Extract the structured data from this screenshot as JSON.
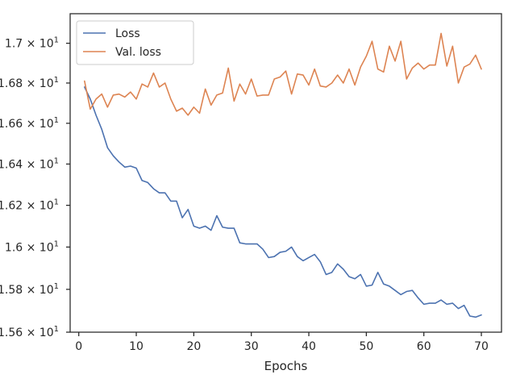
{
  "chart_data": {
    "type": "line",
    "xlabel": "Epochs",
    "ylabel": "",
    "xlim": [
      -1.5,
      73.5
    ],
    "ylim": [
      15.6,
      17.15
    ],
    "y_scale": "log",
    "grid": false,
    "legend_position": "top-left",
    "x_ticks": [
      0,
      10,
      20,
      30,
      40,
      50,
      60,
      70
    ],
    "x_tick_labels": [
      "0",
      "10",
      "20",
      "30",
      "40",
      "50",
      "60",
      "70"
    ],
    "y_ticks": [
      15.6,
      15.8,
      16.0,
      16.2,
      16.4,
      16.6,
      16.8,
      17.0
    ],
    "y_tick_labels": [
      "1.56 × 10",
      "1.58 × 10",
      "1.6 × 10",
      "1.62 × 10",
      "1.64 × 10",
      "1.66 × 10",
      "1.68 × 10",
      "1.7 × 10"
    ],
    "y_tick_exponent": "1",
    "series": [
      {
        "name": "Loss",
        "color": "#4c72b0",
        "x": [
          1,
          2,
          3,
          4,
          5,
          6,
          7,
          8,
          9,
          10,
          11,
          12,
          13,
          14,
          15,
          16,
          17,
          18,
          19,
          20,
          21,
          22,
          23,
          24,
          25,
          26,
          27,
          28,
          29,
          30,
          31,
          32,
          33,
          34,
          35,
          36,
          37,
          38,
          39,
          40,
          41,
          42,
          43,
          44,
          45,
          46,
          47,
          48,
          49,
          50,
          51,
          52,
          53,
          54,
          55,
          56,
          57,
          58,
          59,
          60,
          61,
          62,
          63,
          64,
          65,
          66,
          67,
          68,
          69,
          70
        ],
        "values": [
          16.78,
          16.72,
          16.64,
          16.57,
          16.48,
          16.44,
          16.41,
          16.385,
          16.39,
          16.38,
          16.32,
          16.31,
          16.28,
          16.26,
          16.26,
          16.22,
          16.22,
          16.14,
          16.18,
          16.1,
          16.09,
          16.1,
          16.08,
          16.15,
          16.095,
          16.09,
          16.09,
          16.02,
          16.015,
          16.015,
          16.015,
          15.99,
          15.95,
          15.955,
          15.975,
          15.98,
          16.0,
          15.955,
          15.935,
          15.95,
          15.965,
          15.93,
          15.87,
          15.88,
          15.92,
          15.895,
          15.86,
          15.85,
          15.87,
          15.815,
          15.82,
          15.88,
          15.825,
          15.815,
          15.795,
          15.775,
          15.79,
          15.795,
          15.76,
          15.73,
          15.735,
          15.735,
          15.75,
          15.73,
          15.735,
          15.71,
          15.725,
          15.675,
          15.67,
          15.68
        ]
      },
      {
        "name": "Val. loss",
        "color": "#dd8452",
        "x": [
          1,
          2,
          3,
          4,
          5,
          6,
          7,
          8,
          9,
          10,
          11,
          12,
          13,
          14,
          15,
          16,
          17,
          18,
          19,
          20,
          21,
          22,
          23,
          24,
          25,
          26,
          27,
          28,
          29,
          30,
          31,
          32,
          33,
          34,
          35,
          36,
          37,
          38,
          39,
          40,
          41,
          42,
          43,
          44,
          45,
          46,
          47,
          48,
          49,
          50,
          51,
          52,
          53,
          54,
          55,
          56,
          57,
          58,
          59,
          60,
          61,
          62,
          63,
          64,
          65,
          66,
          67,
          68,
          69,
          70
        ],
        "values": [
          16.81,
          16.67,
          16.72,
          16.745,
          16.68,
          16.74,
          16.745,
          16.73,
          16.755,
          16.72,
          16.795,
          16.78,
          16.85,
          16.78,
          16.8,
          16.72,
          16.66,
          16.675,
          16.64,
          16.68,
          16.65,
          16.77,
          16.69,
          16.74,
          16.75,
          16.875,
          16.71,
          16.795,
          16.745,
          16.82,
          16.735,
          16.74,
          16.74,
          16.82,
          16.83,
          16.86,
          16.745,
          16.845,
          16.84,
          16.79,
          16.87,
          16.785,
          16.78,
          16.8,
          16.84,
          16.8,
          16.87,
          16.79,
          16.88,
          16.935,
          17.01,
          16.87,
          16.855,
          16.985,
          16.91,
          17.01,
          16.82,
          16.875,
          16.9,
          16.87,
          16.89,
          16.89,
          17.05,
          16.885,
          16.985,
          16.8,
          16.88,
          16.895,
          16.94,
          16.87
        ]
      }
    ]
  }
}
